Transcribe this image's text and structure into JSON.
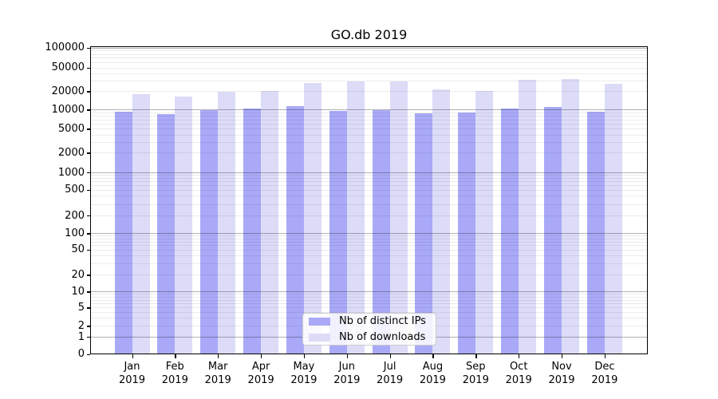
{
  "chart_data": {
    "type": "bar",
    "title": "GO.db 2019",
    "categories": [
      "Jan 2019",
      "Feb 2019",
      "Mar 2019",
      "Apr 2019",
      "May 2019",
      "Jun 2019",
      "Jul 2019",
      "Aug 2019",
      "Sep 2019",
      "Oct 2019",
      "Nov 2019",
      "Dec 2019"
    ],
    "series": [
      {
        "name": "Nb of distinct IPs",
        "color": "#a9a9f8",
        "values": [
          9350,
          8400,
          9950,
          10300,
          11350,
          9400,
          9950,
          8750,
          9050,
          10500,
          11050,
          9350
        ]
      },
      {
        "name": "Nb of downloads",
        "color": "#dcdcf8",
        "values": [
          18100,
          16200,
          19700,
          20300,
          27100,
          29600,
          28900,
          21400,
          20400,
          31300,
          31800,
          27000
        ]
      }
    ],
    "xlabel": "",
    "ylabel": "",
    "y_axis": {
      "scale": "log-like (log10(1+y))",
      "ticks": [
        0,
        1,
        2,
        5,
        10,
        20,
        50,
        100,
        200,
        500,
        1000,
        2000,
        5000,
        10000,
        20000,
        50000,
        100000
      ],
      "ylim": [
        0,
        100000
      ]
    },
    "legend": {
      "entries": [
        "Nb of distinct IPs",
        "Nb of downloads"
      ],
      "position": "bottom-center inside plot"
    },
    "grid": {
      "horizontal": true,
      "minor_lines": true,
      "vertical": false
    }
  }
}
